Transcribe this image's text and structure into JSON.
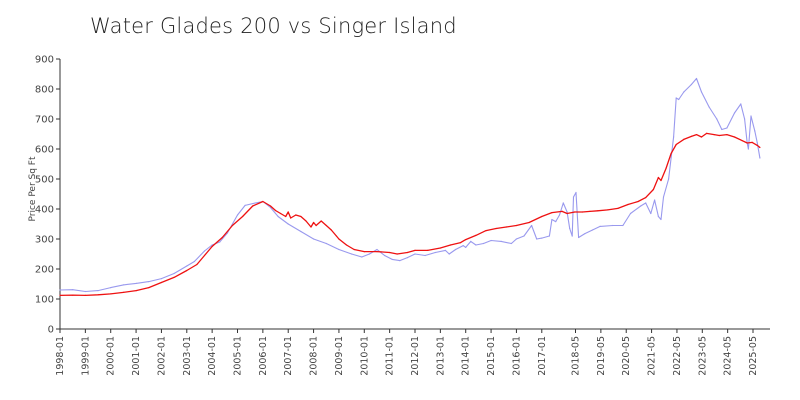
{
  "chart_data": {
    "type": "line",
    "title": "Water Glades 200 vs Singer Island",
    "xlabel": "",
    "ylabel": "Price Per Sq Ft",
    "ylim": [
      0,
      900
    ],
    "xlim": [
      1998.0,
      2026.0
    ],
    "y_ticks": [
      0,
      100,
      200,
      300,
      400,
      500,
      600,
      700,
      800,
      900
    ],
    "x_ticks": [
      {
        "label": "1998-01",
        "x": 1998.0
      },
      {
        "label": "1999-01",
        "x": 1999.0
      },
      {
        "label": "2000-01",
        "x": 2000.0
      },
      {
        "label": "2001-01",
        "x": 2001.0
      },
      {
        "label": "2002-01",
        "x": 2002.0
      },
      {
        "label": "2003-01",
        "x": 2003.0
      },
      {
        "label": "2004-01",
        "x": 2004.0
      },
      {
        "label": "2005-01",
        "x": 2005.0
      },
      {
        "label": "2006-01",
        "x": 2006.0
      },
      {
        "label": "2007-01",
        "x": 2007.0
      },
      {
        "label": "2008-01",
        "x": 2008.0
      },
      {
        "label": "2009-01",
        "x": 2009.0
      },
      {
        "label": "2010-01",
        "x": 2010.0
      },
      {
        "label": "2011-01",
        "x": 2011.0
      },
      {
        "label": "2012-01",
        "x": 2012.0
      },
      {
        "label": "2013-01",
        "x": 2013.0
      },
      {
        "label": "2014-01",
        "x": 2014.0
      },
      {
        "label": "2015-01",
        "x": 2015.0
      },
      {
        "label": "2016-01",
        "x": 2016.0
      },
      {
        "label": "2017-01",
        "x": 2017.0
      },
      {
        "label": "2018-05",
        "x": 2018.33
      },
      {
        "label": "2019-05",
        "x": 2019.33
      },
      {
        "label": "2020-05",
        "x": 2020.33
      },
      {
        "label": "2021-05",
        "x": 2021.33
      },
      {
        "label": "2022-05",
        "x": 2022.33
      },
      {
        "label": "2023-05",
        "x": 2023.33
      },
      {
        "label": "2024-05",
        "x": 2024.33
      },
      {
        "label": "2025-05",
        "x": 2025.33
      }
    ],
    "series": [
      {
        "name": "Water Glades 200",
        "color": "#9999ee",
        "points": [
          [
            1998.0,
            130
          ],
          [
            1998.5,
            131
          ],
          [
            1999.0,
            125
          ],
          [
            1999.5,
            128
          ],
          [
            2000.0,
            138
          ],
          [
            2000.5,
            147
          ],
          [
            2001.0,
            152
          ],
          [
            2001.5,
            158
          ],
          [
            2002.0,
            168
          ],
          [
            2002.5,
            185
          ],
          [
            2003.0,
            210
          ],
          [
            2003.3,
            225
          ],
          [
            2003.7,
            260
          ],
          [
            2004.0,
            280
          ],
          [
            2004.3,
            290
          ],
          [
            2004.6,
            320
          ],
          [
            2005.0,
            380
          ],
          [
            2005.3,
            412
          ],
          [
            2005.7,
            420
          ],
          [
            2006.0,
            425
          ],
          [
            2006.3,
            405
          ],
          [
            2006.6,
            375
          ],
          [
            2007.0,
            350
          ],
          [
            2007.5,
            325
          ],
          [
            2008.0,
            300
          ],
          [
            2008.5,
            285
          ],
          [
            2009.0,
            265
          ],
          [
            2009.5,
            250
          ],
          [
            2009.9,
            240
          ],
          [
            2010.2,
            250
          ],
          [
            2010.5,
            265
          ],
          [
            2010.8,
            245
          ],
          [
            2011.1,
            232
          ],
          [
            2011.4,
            228
          ],
          [
            2011.7,
            238
          ],
          [
            2012.0,
            250
          ],
          [
            2012.4,
            245
          ],
          [
            2012.8,
            255
          ],
          [
            2013.2,
            262
          ],
          [
            2013.35,
            250
          ],
          [
            2013.6,
            265
          ],
          [
            2013.9,
            278
          ],
          [
            2014.0,
            272
          ],
          [
            2014.2,
            292
          ],
          [
            2014.4,
            280
          ],
          [
            2014.7,
            285
          ],
          [
            2015.0,
            295
          ],
          [
            2015.4,
            292
          ],
          [
            2015.8,
            285
          ],
          [
            2016.0,
            300
          ],
          [
            2016.3,
            310
          ],
          [
            2016.6,
            345
          ],
          [
            2016.8,
            300
          ],
          [
            2017.0,
            303
          ],
          [
            2017.3,
            310
          ],
          [
            2017.4,
            365
          ],
          [
            2017.55,
            358
          ],
          [
            2017.7,
            380
          ],
          [
            2017.85,
            420
          ],
          [
            2018.0,
            390
          ],
          [
            2018.1,
            335
          ],
          [
            2018.2,
            310
          ],
          [
            2018.25,
            440
          ],
          [
            2018.35,
            455
          ],
          [
            2018.45,
            305
          ],
          [
            2018.7,
            318
          ],
          [
            2019.0,
            330
          ],
          [
            2019.3,
            342
          ],
          [
            2019.8,
            345
          ],
          [
            2020.2,
            345
          ],
          [
            2020.5,
            385
          ],
          [
            2020.9,
            410
          ],
          [
            2021.1,
            420
          ],
          [
            2021.3,
            385
          ],
          [
            2021.45,
            430
          ],
          [
            2021.6,
            375
          ],
          [
            2021.7,
            365
          ],
          [
            2021.8,
            440
          ],
          [
            2022.0,
            500
          ],
          [
            2022.2,
            640
          ],
          [
            2022.3,
            770
          ],
          [
            2022.4,
            765
          ],
          [
            2022.6,
            790
          ],
          [
            2022.9,
            815
          ],
          [
            2023.1,
            835
          ],
          [
            2023.3,
            790
          ],
          [
            2023.6,
            740
          ],
          [
            2023.9,
            700
          ],
          [
            2024.1,
            665
          ],
          [
            2024.3,
            670
          ],
          [
            2024.6,
            720
          ],
          [
            2024.85,
            750
          ],
          [
            2025.0,
            700
          ],
          [
            2025.1,
            620
          ],
          [
            2025.15,
            600
          ],
          [
            2025.25,
            710
          ],
          [
            2025.4,
            660
          ],
          [
            2025.5,
            620
          ],
          [
            2025.6,
            570
          ]
        ]
      },
      {
        "name": "Singer Island",
        "color": "#ee1111",
        "points": [
          [
            1998.0,
            112
          ],
          [
            1998.5,
            113
          ],
          [
            1999.0,
            112
          ],
          [
            1999.5,
            114
          ],
          [
            2000.0,
            117
          ],
          [
            2000.5,
            122
          ],
          [
            2001.0,
            128
          ],
          [
            2001.5,
            138
          ],
          [
            2002.0,
            155
          ],
          [
            2002.5,
            172
          ],
          [
            2003.0,
            195
          ],
          [
            2003.4,
            215
          ],
          [
            2003.7,
            245
          ],
          [
            2004.0,
            275
          ],
          [
            2004.4,
            305
          ],
          [
            2004.8,
            345
          ],
          [
            2005.2,
            375
          ],
          [
            2005.6,
            410
          ],
          [
            2006.0,
            425
          ],
          [
            2006.3,
            410
          ],
          [
            2006.5,
            395
          ],
          [
            2006.7,
            385
          ],
          [
            2006.9,
            375
          ],
          [
            2007.0,
            390
          ],
          [
            2007.1,
            370
          ],
          [
            2007.3,
            380
          ],
          [
            2007.5,
            375
          ],
          [
            2007.7,
            360
          ],
          [
            2007.9,
            340
          ],
          [
            2008.0,
            355
          ],
          [
            2008.1,
            345
          ],
          [
            2008.3,
            360
          ],
          [
            2008.5,
            345
          ],
          [
            2008.7,
            330
          ],
          [
            2008.9,
            310
          ],
          [
            2009.0,
            300
          ],
          [
            2009.3,
            280
          ],
          [
            2009.6,
            265
          ],
          [
            2010.0,
            258
          ],
          [
            2010.5,
            258
          ],
          [
            2011.0,
            255
          ],
          [
            2011.3,
            250
          ],
          [
            2011.7,
            255
          ],
          [
            2012.0,
            262
          ],
          [
            2012.5,
            262
          ],
          [
            2013.0,
            270
          ],
          [
            2013.4,
            280
          ],
          [
            2013.8,
            288
          ],
          [
            2014.0,
            298
          ],
          [
            2014.4,
            312
          ],
          [
            2014.8,
            328
          ],
          [
            2015.2,
            335
          ],
          [
            2015.6,
            340
          ],
          [
            2016.0,
            345
          ],
          [
            2016.5,
            355
          ],
          [
            2017.0,
            375
          ],
          [
            2017.4,
            388
          ],
          [
            2017.8,
            392
          ],
          [
            2018.0,
            385
          ],
          [
            2018.3,
            390
          ],
          [
            2018.6,
            390
          ],
          [
            2018.9,
            392
          ],
          [
            2019.2,
            394
          ],
          [
            2019.6,
            397
          ],
          [
            2020.0,
            402
          ],
          [
            2020.4,
            415
          ],
          [
            2020.8,
            425
          ],
          [
            2021.1,
            438
          ],
          [
            2021.4,
            465
          ],
          [
            2021.6,
            505
          ],
          [
            2021.7,
            495
          ],
          [
            2021.9,
            535
          ],
          [
            2022.1,
            585
          ],
          [
            2022.3,
            615
          ],
          [
            2022.6,
            632
          ],
          [
            2022.9,
            642
          ],
          [
            2023.1,
            648
          ],
          [
            2023.3,
            640
          ],
          [
            2023.5,
            652
          ],
          [
            2023.8,
            648
          ],
          [
            2024.0,
            645
          ],
          [
            2024.3,
            648
          ],
          [
            2024.6,
            640
          ],
          [
            2024.9,
            628
          ],
          [
            2025.1,
            620
          ],
          [
            2025.3,
            622
          ],
          [
            2025.5,
            612
          ],
          [
            2025.6,
            605
          ]
        ]
      }
    ]
  }
}
